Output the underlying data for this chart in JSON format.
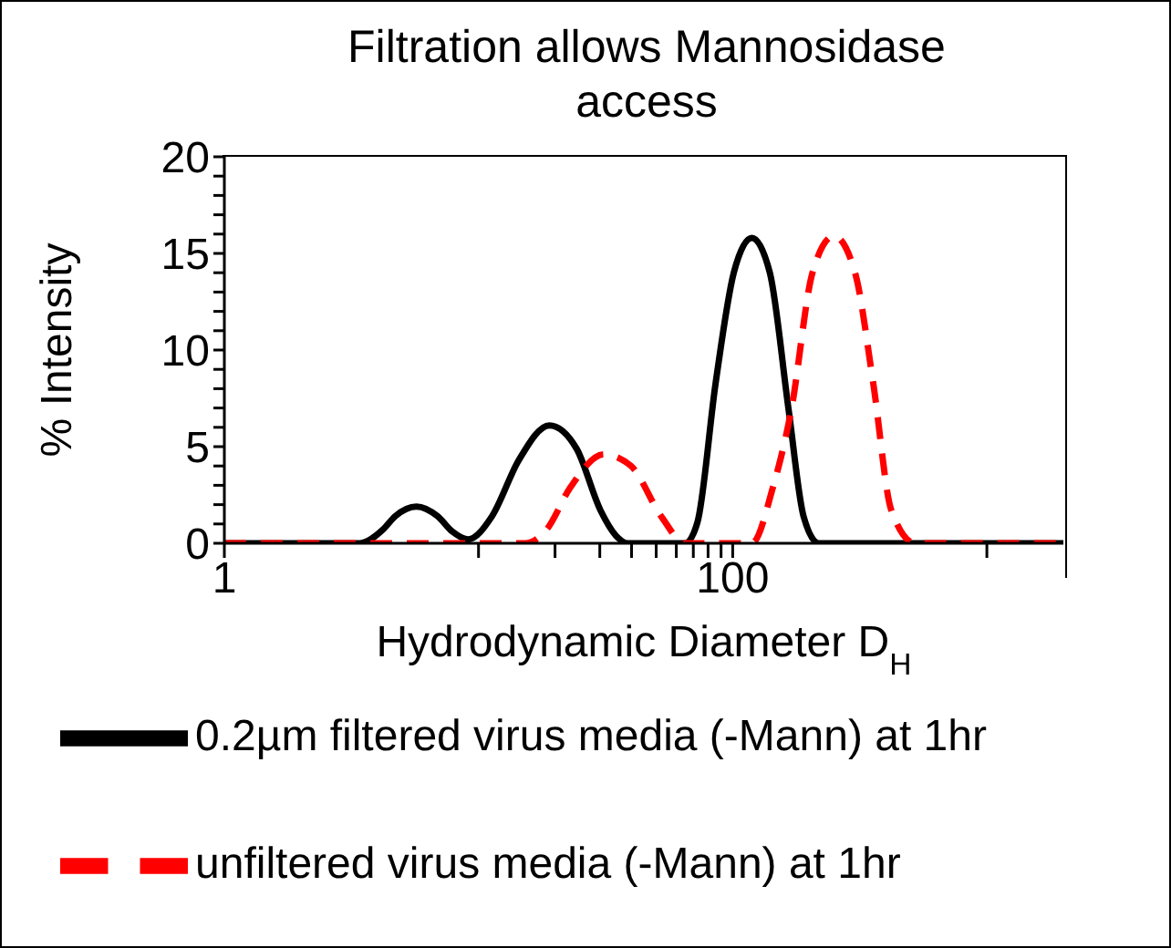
{
  "chart_data": {
    "type": "line",
    "title": "Filtration allows Mannosidase access",
    "xlabel": "Hydrodynamic Diameter D$_{H}$",
    "ylabel": "% Intensity",
    "log": "x",
    "xlim": [
      1,
      2000
    ],
    "xticks": [
      1,
      {
        "value": 10,
        "label": null
      },
      {
        "value": 20,
        "label": null
      },
      {
        "value": 30,
        "label": null
      },
      {
        "value": 40,
        "label": null
      },
      {
        "value": 50,
        "label": null
      },
      {
        "value": 60,
        "label": null
      },
      {
        "value": 70,
        "label": null
      },
      {
        "value": 80,
        "label": null
      },
      {
        "value": 90,
        "label": null
      },
      100,
      {
        "value": 1000,
        "label": null
      }
    ],
    "ylim": [
      0,
      20
    ],
    "yticks": [
      0,
      {
        "value": 1,
        "label": null
      },
      {
        "value": 2,
        "label": null
      },
      {
        "value": 3,
        "label": null
      },
      {
        "value": 4,
        "label": null
      },
      5,
      {
        "value": 6,
        "label": null
      },
      {
        "value": 7,
        "label": null
      },
      {
        "value": 8,
        "label": null
      },
      {
        "value": 9,
        "label": null
      },
      10,
      {
        "value": 11,
        "label": null
      },
      {
        "value": 12,
        "label": null
      },
      {
        "value": 13,
        "label": null
      },
      {
        "value": 14,
        "label": null
      },
      15,
      {
        "value": 16,
        "label": null
      },
      {
        "value": 17,
        "label": null
      },
      {
        "value": 18,
        "label": null
      },
      {
        "value": 19,
        "label": null
      },
      20
    ],
    "grid": false,
    "legend": "bottom",
    "marker": "none",
    "series": [
      {
        "name": "0.2µm filtered virus media (-Mann) at 1hr",
        "color": "#000000",
        "line_style": "solid",
        "x": [
          1,
          3.4,
          4.2,
          4.7,
          5.7,
          6.9,
          7.9,
          9.1,
          11.3,
          14.4,
          19,
          24.3,
          30.2,
          34.7,
          38.7,
          65,
          72.7,
          85.7,
          101,
          119,
          140,
          166,
          190,
          218,
          2000
        ],
        "values": [
          0,
          0,
          0.7,
          1.4,
          1.9,
          1.4,
          0.6,
          0.2,
          1.4,
          4.3,
          6.1,
          4.9,
          1.7,
          0.4,
          0,
          0,
          1.1,
          8.3,
          14,
          15.8,
          14,
          6.9,
          1.4,
          0,
          0
        ]
      },
      {
        "name": "unfiltered virus media (-Mann) at 1hr",
        "color": "#ff0000",
        "line_style": "dashed",
        "x": [
          1,
          15.2,
          18.5,
          23,
          31.1,
          39.8,
          52.3,
          65,
          119,
          144,
          170,
          206,
          250,
          303,
          357,
          421,
          523,
          2000
        ],
        "values": [
          0,
          0,
          0.7,
          2.9,
          4.6,
          4,
          1.4,
          0,
          0,
          2.9,
          6.9,
          14,
          15.9,
          14,
          8.3,
          1.7,
          0,
          0
        ]
      }
    ]
  }
}
